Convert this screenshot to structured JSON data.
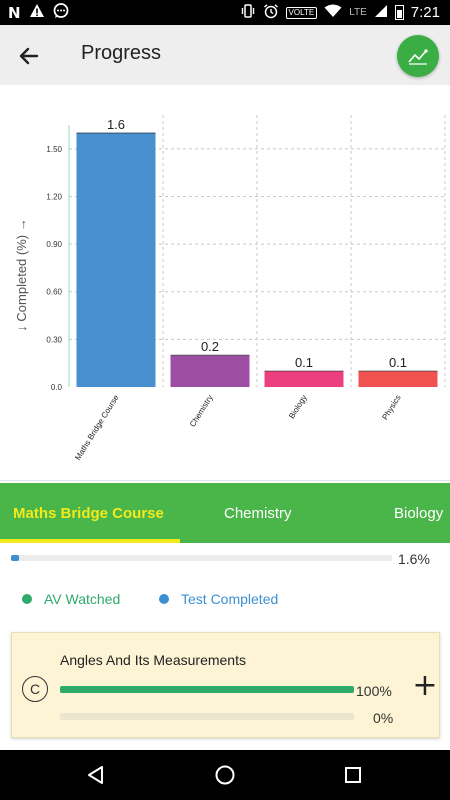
{
  "status_bar": {
    "time": "7:21",
    "network_label": "LTE",
    "volte_label": "VOLTE",
    "left_icons": [
      "notification-n-icon",
      "silent-notification-icon",
      "chat-notification-icon"
    ],
    "right_icons": [
      "vibrate-icon",
      "alarm-icon",
      "volte-icon",
      "wifi-icon",
      "lte-signal-icon",
      "battery-icon"
    ]
  },
  "app_bar": {
    "title": "Progress",
    "back_icon": "arrow-left-icon",
    "action_icon": "line-chart-icon",
    "action_color": "#3aae45"
  },
  "chart_data": {
    "type": "bar",
    "categories": [
      "Maths Bridge Course",
      "Chemistry",
      "Biology",
      "Physics"
    ],
    "values": [
      1.6,
      0.2,
      0.1,
      0.1
    ],
    "value_labels": [
      "1.6",
      "0.2",
      "0.1",
      "0.1"
    ],
    "colors": [
      "#4a8fd0",
      "#9b4ea3",
      "#ec3f7f",
      "#f05252"
    ],
    "ylabel": "↓ Completed (%) →",
    "ylim": [
      0,
      1.65
    ],
    "yticks": [
      {
        "value": 0.0,
        "label": "0.0"
      },
      {
        "value": 0.3,
        "label": "0.30"
      },
      {
        "value": 0.6,
        "label": "0.60"
      },
      {
        "value": 0.9,
        "label": "0.90"
      },
      {
        "value": 1.2,
        "label": "1.20"
      },
      {
        "value": 1.5,
        "label": "1.50"
      }
    ],
    "grid": true
  },
  "tabs": {
    "items": [
      {
        "label": "Maths Bridge Course",
        "active": true
      },
      {
        "label": "Chemistry",
        "active": false
      },
      {
        "label": "Biology",
        "active": false
      }
    ],
    "background": "#4ab549",
    "active_color": "#f2ea1d"
  },
  "overall_progress": {
    "label": "1.6%",
    "fraction": 0.016
  },
  "legend": {
    "items": [
      {
        "label": "AV Watched",
        "color": "#2eaa6a"
      },
      {
        "label": "Test Completed",
        "color": "#3d8fd0"
      }
    ]
  },
  "topic_card": {
    "title": "Angles And Its Measurements",
    "badge": "C",
    "av_label": "100%",
    "av_fraction": 1.0,
    "test_label": "0%",
    "test_fraction": 0.0,
    "expand_label": "+"
  },
  "nav_bar": {
    "icons": [
      "back-triangle-icon",
      "home-circle-icon",
      "recents-square-icon"
    ]
  }
}
